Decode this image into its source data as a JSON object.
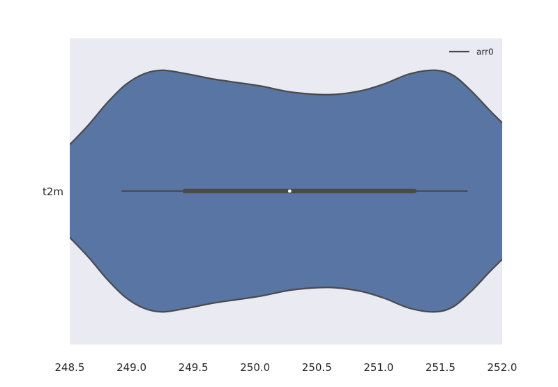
{
  "chart_data": {
    "type": "violin",
    "orientation": "horizontal",
    "title": "",
    "xlabel": "",
    "ylabel": "",
    "xlim": [
      248.5,
      252.0
    ],
    "xticks": [
      248.5,
      249.0,
      249.5,
      250.0,
      250.5,
      251.0,
      251.5,
      252.0
    ],
    "xtick_labels": [
      "248.5",
      "249.0",
      "249.5",
      "250.0",
      "250.5",
      "251.0",
      "251.5",
      "252.0"
    ],
    "categories": [
      "t2m"
    ],
    "grid": false,
    "legend": {
      "placement": "top-right",
      "entries": [
        "arr0"
      ]
    },
    "series": [
      {
        "name": "arr0",
        "category": "t2m",
        "color": "#5875a4",
        "edge_color": "#4a4a4a",
        "density": [
          [
            248.5,
            0.38
          ],
          [
            248.65,
            0.54
          ],
          [
            248.8,
            0.72
          ],
          [
            248.95,
            0.87
          ],
          [
            249.1,
            0.96
          ],
          [
            249.25,
            0.99
          ],
          [
            249.45,
            0.96
          ],
          [
            249.65,
            0.92
          ],
          [
            249.85,
            0.89
          ],
          [
            250.05,
            0.86
          ],
          [
            250.3,
            0.81
          ],
          [
            250.6,
            0.79
          ],
          [
            250.85,
            0.82
          ],
          [
            251.05,
            0.88
          ],
          [
            251.25,
            0.96
          ],
          [
            251.45,
            0.99
          ],
          [
            251.6,
            0.95
          ],
          [
            251.75,
            0.82
          ],
          [
            251.9,
            0.66
          ],
          [
            252.0,
            0.56
          ]
        ],
        "whisker_low": 248.92,
        "q1": 249.43,
        "median": 250.28,
        "q3": 251.29,
        "whisker_high": 251.72
      }
    ]
  }
}
